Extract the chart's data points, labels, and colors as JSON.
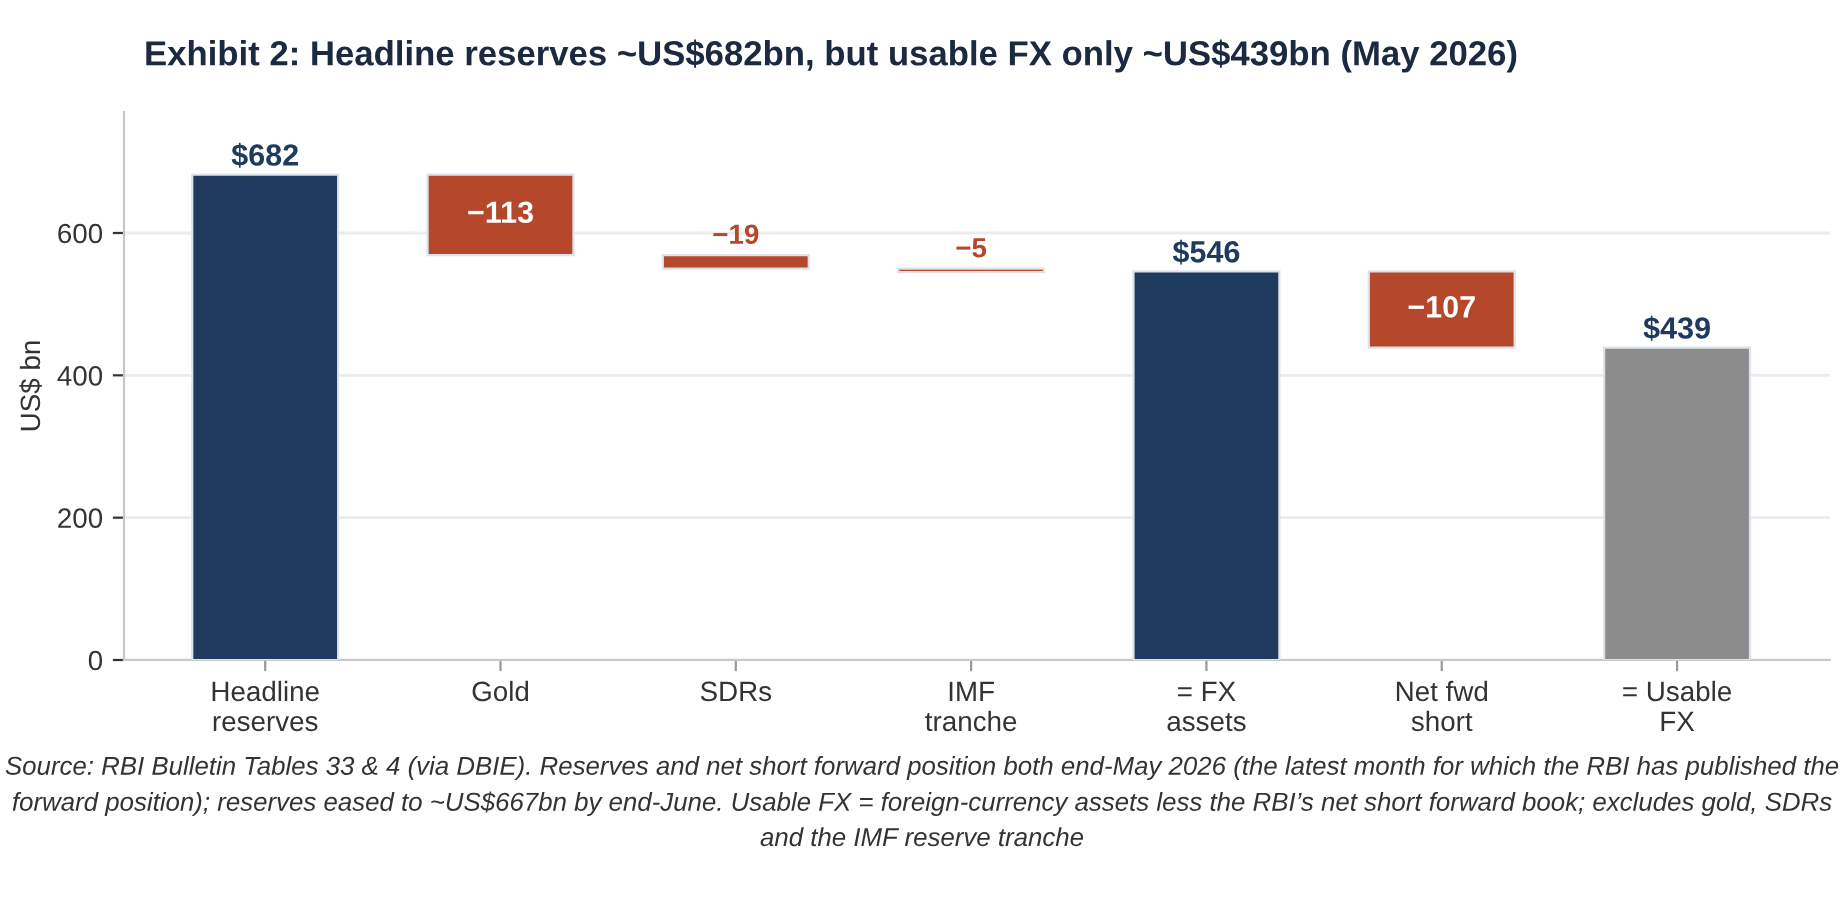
{
  "chart_data": {
    "type": "bar",
    "title": "Exhibit 2: Headline reserves ~US$682bn, but usable FX only ~US$439bn (May 2026)",
    "ylabel": "US$ bn",
    "categories": [
      "Headline\nreserves",
      "Gold",
      "SDRs",
      "IMF\ntranche",
      "= FX\nassets",
      "Net fwd\nshort",
      "= Usable\nFX"
    ],
    "values": [
      682,
      -113,
      -19,
      -5,
      546,
      -107,
      439
    ],
    "base": [
      0,
      682,
      569,
      550,
      0,
      546,
      0
    ],
    "colors": [
      "#1f3a5f",
      "#b5472a",
      "#b5472a",
      "#b5472a",
      "#1f3a5f",
      "#b5472a",
      "#8c8c8c"
    ],
    "value_labels": [
      "$682",
      "−113",
      "−19",
      "−5",
      "$546",
      "−107",
      "$439"
    ],
    "ylim": [
      0,
      770
    ],
    "yticks": [
      0,
      200,
      400,
      600
    ],
    "grid": "y",
    "annotations": [
      "Source: RBI Bulletin Tables 33 & 4 (via DBIE). Reserves and net short forward position both end-May 2026 (the latest month for which the RBI has published the forward position); reserves eased to ~US$667bn by end-June. Usable FX = foreign-currency assets less the RBI’s net short forward book; excludes gold, SDRs and the IMF reserve tranche"
    ]
  }
}
